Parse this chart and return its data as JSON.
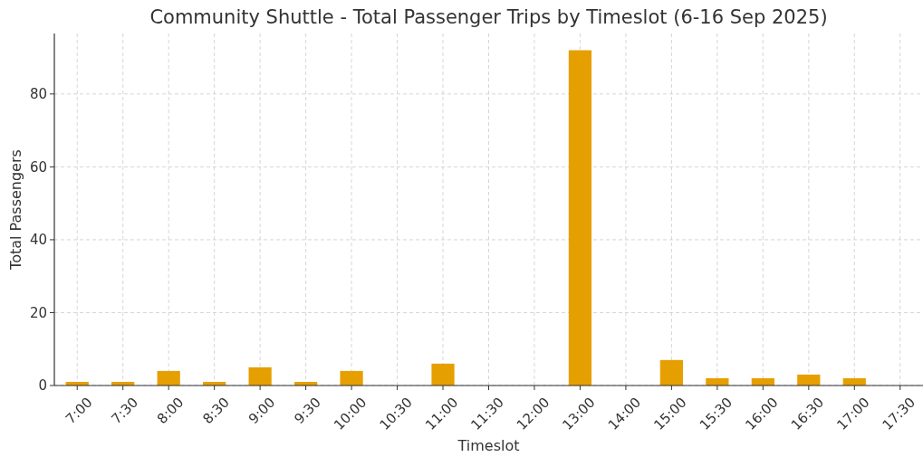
{
  "chart_data": {
    "type": "bar",
    "title": "Community Shuttle - Total Passenger Trips by Timeslot (6-16 Sep 2025)",
    "xlabel": "Timeslot",
    "ylabel": "Total Passengers",
    "categories": [
      "7:00",
      "7:30",
      "8:00",
      "8:30",
      "9:00",
      "9:30",
      "10:00",
      "10:30",
      "11:00",
      "11:30",
      "12:00",
      "13:00",
      "14:00",
      "15:00",
      "15:30",
      "16:00",
      "16:30",
      "17:00",
      "17:30"
    ],
    "values": [
      1,
      1,
      4,
      1,
      5,
      1,
      4,
      0,
      6,
      0,
      0,
      92,
      0,
      7,
      2,
      2,
      3,
      2,
      0
    ],
    "color": "#e69f00",
    "ylim": [
      0,
      96.6
    ],
    "yticks": [
      0,
      20,
      40,
      60,
      80
    ],
    "grid": true
  }
}
